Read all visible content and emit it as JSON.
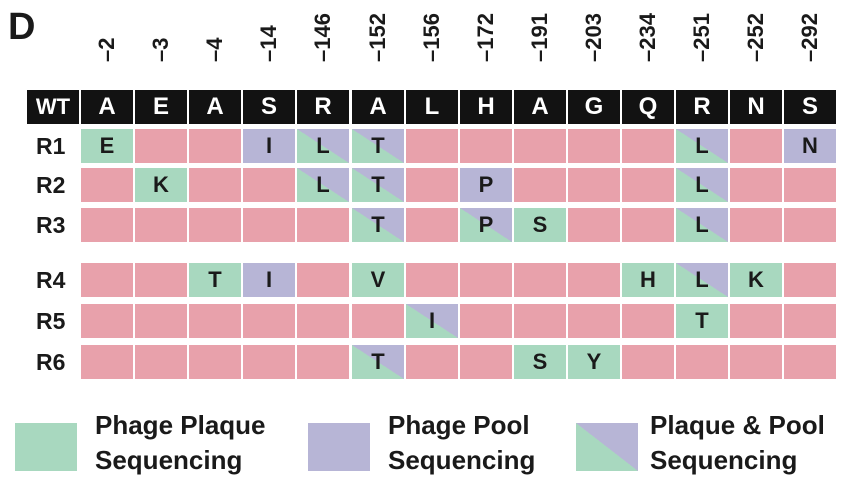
{
  "panel_label": "D",
  "wt_label": "WT",
  "positions": [
    "2",
    "3",
    "4",
    "14",
    "146",
    "152",
    "156",
    "172",
    "191",
    "203",
    "234",
    "251",
    "252",
    "292"
  ],
  "wt": [
    "A",
    "E",
    "A",
    "S",
    "R",
    "A",
    "L",
    "H",
    "A",
    "G",
    "Q",
    "R",
    "N",
    "S"
  ],
  "rows": [
    {
      "label": "R1",
      "cells": [
        {
          "t": "E",
          "c": "g"
        },
        {
          "t": "",
          "c": "n"
        },
        {
          "t": "",
          "c": "n"
        },
        {
          "t": "I",
          "c": "p"
        },
        {
          "t": "L",
          "c": "b"
        },
        {
          "t": "T",
          "c": "b"
        },
        {
          "t": "",
          "c": "n"
        },
        {
          "t": "",
          "c": "n"
        },
        {
          "t": "",
          "c": "n"
        },
        {
          "t": "",
          "c": "n"
        },
        {
          "t": "",
          "c": "n"
        },
        {
          "t": "L",
          "c": "b"
        },
        {
          "t": "",
          "c": "n"
        },
        {
          "t": "N",
          "c": "p"
        }
      ]
    },
    {
      "label": "R2",
      "cells": [
        {
          "t": "",
          "c": "n"
        },
        {
          "t": "K",
          "c": "g"
        },
        {
          "t": "",
          "c": "n"
        },
        {
          "t": "",
          "c": "n"
        },
        {
          "t": "L",
          "c": "b"
        },
        {
          "t": "T",
          "c": "b"
        },
        {
          "t": "",
          "c": "n"
        },
        {
          "t": "P",
          "c": "p"
        },
        {
          "t": "",
          "c": "n"
        },
        {
          "t": "",
          "c": "n"
        },
        {
          "t": "",
          "c": "n"
        },
        {
          "t": "L",
          "c": "b"
        },
        {
          "t": "",
          "c": "n"
        },
        {
          "t": "",
          "c": "n"
        }
      ]
    },
    {
      "label": "R3",
      "cells": [
        {
          "t": "",
          "c": "n"
        },
        {
          "t": "",
          "c": "n"
        },
        {
          "t": "",
          "c": "n"
        },
        {
          "t": "",
          "c": "n"
        },
        {
          "t": "",
          "c": "n"
        },
        {
          "t": "T",
          "c": "b"
        },
        {
          "t": "",
          "c": "n"
        },
        {
          "t": "P",
          "c": "b"
        },
        {
          "t": "S",
          "c": "g"
        },
        {
          "t": "",
          "c": "n"
        },
        {
          "t": "",
          "c": "n"
        },
        {
          "t": "L",
          "c": "b"
        },
        {
          "t": "",
          "c": "n"
        },
        {
          "t": "",
          "c": "n"
        }
      ]
    },
    {
      "label": "R4",
      "cells": [
        {
          "t": "",
          "c": "n"
        },
        {
          "t": "",
          "c": "n"
        },
        {
          "t": "T",
          "c": "g"
        },
        {
          "t": "I",
          "c": "p"
        },
        {
          "t": "",
          "c": "n"
        },
        {
          "t": "V",
          "c": "g"
        },
        {
          "t": "",
          "c": "n"
        },
        {
          "t": "",
          "c": "n"
        },
        {
          "t": "",
          "c": "n"
        },
        {
          "t": "",
          "c": "n"
        },
        {
          "t": "H",
          "c": "g"
        },
        {
          "t": "L",
          "c": "b"
        },
        {
          "t": "K",
          "c": "g"
        },
        {
          "t": "",
          "c": "n"
        }
      ]
    },
    {
      "label": "R5",
      "cells": [
        {
          "t": "",
          "c": "n"
        },
        {
          "t": "",
          "c": "n"
        },
        {
          "t": "",
          "c": "n"
        },
        {
          "t": "",
          "c": "n"
        },
        {
          "t": "",
          "c": "n"
        },
        {
          "t": "",
          "c": "n"
        },
        {
          "t": "I",
          "c": "b"
        },
        {
          "t": "",
          "c": "n"
        },
        {
          "t": "",
          "c": "n"
        },
        {
          "t": "",
          "c": "n"
        },
        {
          "t": "",
          "c": "n"
        },
        {
          "t": "T",
          "c": "g"
        },
        {
          "t": "",
          "c": "n"
        },
        {
          "t": "",
          "c": "n"
        }
      ]
    },
    {
      "label": "R6",
      "cells": [
        {
          "t": "",
          "c": "n"
        },
        {
          "t": "",
          "c": "n"
        },
        {
          "t": "",
          "c": "n"
        },
        {
          "t": "",
          "c": "n"
        },
        {
          "t": "",
          "c": "n"
        },
        {
          "t": "T",
          "c": "b"
        },
        {
          "t": "",
          "c": "n"
        },
        {
          "t": "",
          "c": "n"
        },
        {
          "t": "S",
          "c": "g"
        },
        {
          "t": "Y",
          "c": "g"
        },
        {
          "t": "",
          "c": "n"
        },
        {
          "t": "",
          "c": "n"
        },
        {
          "t": "",
          "c": "n"
        },
        {
          "t": "",
          "c": "n"
        }
      ]
    }
  ],
  "legend": [
    {
      "key": "plaque",
      "line1": "Phage Plaque",
      "line2": "Sequencing"
    },
    {
      "key": "pool",
      "line1": "Phage Pool",
      "line2": "Sequencing"
    },
    {
      "key": "both",
      "line1": "Plaque & Pool",
      "line2": "Sequencing"
    }
  ],
  "colors": {
    "none": "#e8a1ab",
    "plaque": "#a8d8bf",
    "pool": "#b7b5d6",
    "header": "#121212"
  }
}
